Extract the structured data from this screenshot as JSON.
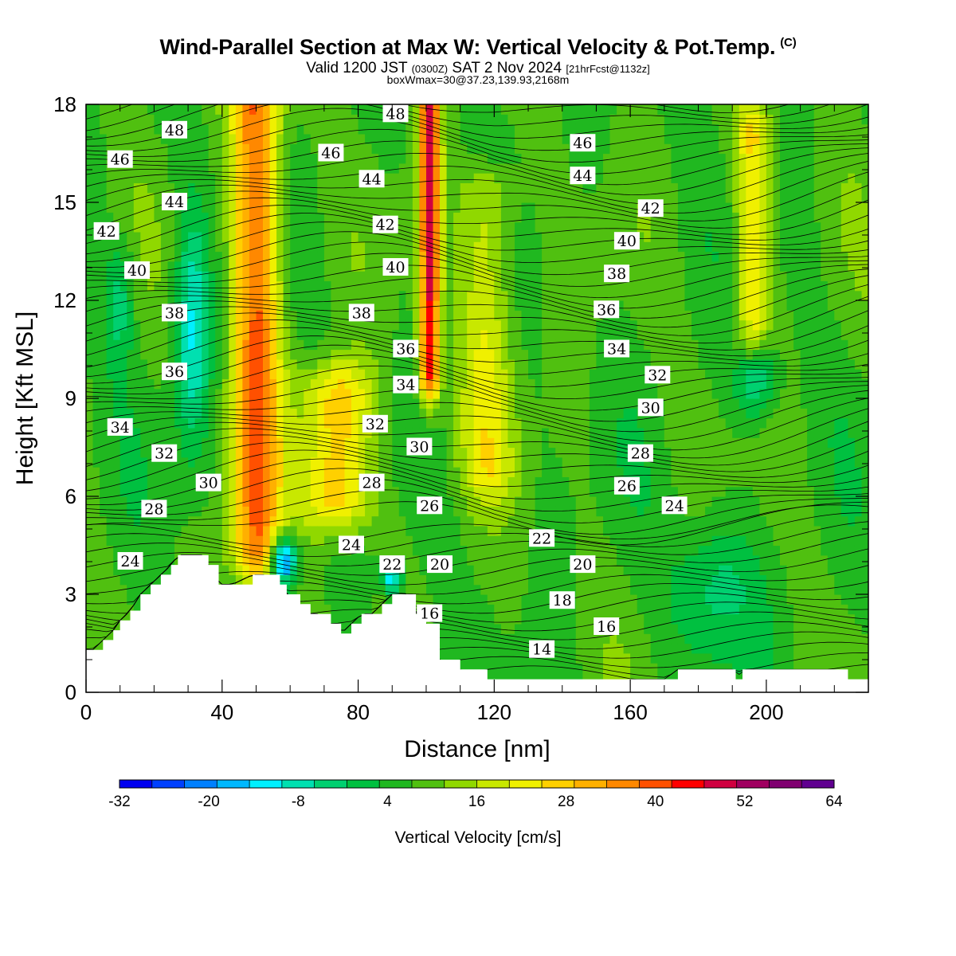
{
  "header": {
    "title": "Wind-Parallel Section at Max W: Vertical Velocity & Pot.Temp.",
    "copyright": "(C)",
    "valid_prefix": "Valid 1200 JST",
    "valid_utc": "(0300Z)",
    "valid_date": "SAT 2 Nov 2024",
    "forecast": "[21hrFcst@1132z]",
    "box_info": "boxWmax=30@37.23,139.93,2168m"
  },
  "chart_data": {
    "type": "heatmap",
    "xlabel": "Distance [nm]",
    "ylabel": "Height [Kft MSL]",
    "xlim": [
      0,
      230
    ],
    "ylim": [
      0,
      18
    ],
    "x_ticks": [
      0,
      40,
      80,
      120,
      160,
      200
    ],
    "y_ticks": [
      0,
      3,
      6,
      9,
      12,
      15,
      18
    ],
    "colorbar": {
      "title": "Vertical Velocity [cm/s]",
      "tick_labels": [
        "-32",
        "-20",
        "-8",
        "4",
        "16",
        "28",
        "40",
        "52",
        "64"
      ],
      "min": -32,
      "max": 64,
      "step": 4,
      "colors": [
        "#0000f0",
        "#0040ff",
        "#0080ff",
        "#00b8ff",
        "#00f0ff",
        "#00e0b0",
        "#00d070",
        "#00c040",
        "#20b820",
        "#50c010",
        "#90d800",
        "#c8e800",
        "#f0f000",
        "#ffd000",
        "#ffb000",
        "#ff8800",
        "#ff5000",
        "#ff0000",
        "#d00040",
        "#a00060",
        "#800070",
        "#600090"
      ]
    },
    "terrain_kft": {
      "x": [
        0,
        2,
        5,
        8,
        10,
        13,
        16,
        19,
        22,
        25,
        27,
        30,
        34,
        36,
        39,
        43,
        49,
        53,
        57,
        59,
        63,
        66,
        69,
        72,
        75,
        78,
        81,
        84,
        87,
        90,
        94,
        97,
        100,
        104,
        110,
        118,
        124,
        130,
        140,
        150,
        160,
        165,
        170,
        174,
        180,
        190,
        191,
        193,
        200,
        210,
        218,
        224,
        230
      ],
      "y": [
        1.3,
        1.3,
        1.6,
        1.9,
        2.2,
        2.5,
        3.0,
        3.3,
        3.6,
        3.9,
        4.2,
        4.2,
        4.2,
        3.9,
        3.3,
        3.3,
        3.6,
        3.6,
        3.3,
        3.0,
        2.7,
        2.4,
        2.4,
        2.1,
        1.8,
        2.1,
        2.4,
        2.4,
        2.7,
        3.0,
        3.0,
        2.4,
        2.1,
        1.0,
        0.7,
        0.4,
        0.4,
        0.4,
        0.4,
        0.4,
        0.4,
        0.4,
        0.4,
        0.7,
        0.7,
        0.7,
        0.4,
        0.7,
        0.7,
        0.7,
        0.7,
        0.4,
        0.4
      ]
    },
    "updraft_bands": [
      {
        "x_center": 50,
        "x_width": 14,
        "y_bottom": 4.5,
        "y_top": 18,
        "w_max": 32
      },
      {
        "x_center": 101,
        "x_width": 6,
        "y_bottom": 10,
        "y_top": 18,
        "w_max": 40
      },
      {
        "x_center": 74,
        "x_width": 20,
        "y_bottom": 6,
        "y_top": 9,
        "w_max": 24
      },
      {
        "x_center": 118,
        "x_width": 16,
        "y_bottom": 7,
        "y_top": 15,
        "w_max": 16
      },
      {
        "x_center": 196,
        "x_width": 10,
        "y_bottom": 11,
        "y_top": 17,
        "w_max": 20
      }
    ],
    "downdraft_cells": [
      {
        "x_center": 31,
        "x_width": 10,
        "y_bottom": 7.5,
        "y_top": 14.5,
        "w_min": -12
      },
      {
        "x_center": 10,
        "x_width": 8,
        "y_bottom": 10,
        "y_top": 14,
        "w_min": -6
      },
      {
        "x_center": 58,
        "x_width": 8,
        "y_bottom": 3.3,
        "y_top": 4.8,
        "w_min": -28
      },
      {
        "x_center": 90,
        "x_width": 6,
        "y_bottom": 3.0,
        "y_top": 4.0,
        "w_min": -16
      },
      {
        "x_center": 197,
        "x_width": 12,
        "y_bottom": 8.5,
        "y_top": 11,
        "w_min": -12
      },
      {
        "x_center": 185,
        "x_width": 24,
        "y_bottom": 1,
        "y_top": 5.5,
        "w_min": -6
      }
    ],
    "theta_contour_labels": [
      {
        "value": "48",
        "x": 26,
        "y": 17.2
      },
      {
        "value": "48",
        "x": 91,
        "y": 17.7
      },
      {
        "value": "46",
        "x": 10,
        "y": 16.3
      },
      {
        "value": "46",
        "x": 72,
        "y": 16.5
      },
      {
        "value": "46",
        "x": 146,
        "y": 16.8
      },
      {
        "value": "44",
        "x": 26,
        "y": 15.0
      },
      {
        "value": "44",
        "x": 84,
        "y": 15.7
      },
      {
        "value": "44",
        "x": 146,
        "y": 15.8
      },
      {
        "value": "42",
        "x": 6,
        "y": 14.1
      },
      {
        "value": "42",
        "x": 88,
        "y": 14.3
      },
      {
        "value": "42",
        "x": 166,
        "y": 14.8
      },
      {
        "value": "40",
        "x": 15,
        "y": 12.9
      },
      {
        "value": "40",
        "x": 91,
        "y": 13.0
      },
      {
        "value": "40",
        "x": 159,
        "y": 13.8
      },
      {
        "value": "38",
        "x": 26,
        "y": 11.6
      },
      {
        "value": "38",
        "x": 81,
        "y": 11.6
      },
      {
        "value": "38",
        "x": 156,
        "y": 12.8
      },
      {
        "value": "36",
        "x": 26,
        "y": 9.8
      },
      {
        "value": "36",
        "x": 94,
        "y": 10.5
      },
      {
        "value": "36",
        "x": 153,
        "y": 11.7
      },
      {
        "value": "34",
        "x": 10,
        "y": 8.1
      },
      {
        "value": "34",
        "x": 94,
        "y": 9.4
      },
      {
        "value": "34",
        "x": 156,
        "y": 10.5
      },
      {
        "value": "32",
        "x": 23,
        "y": 7.3
      },
      {
        "value": "32",
        "x": 85,
        "y": 8.2
      },
      {
        "value": "32",
        "x": 168,
        "y": 9.7
      },
      {
        "value": "30",
        "x": 36,
        "y": 6.4
      },
      {
        "value": "30",
        "x": 98,
        "y": 7.5
      },
      {
        "value": "30",
        "x": 166,
        "y": 8.7
      },
      {
        "value": "28",
        "x": 20,
        "y": 5.6
      },
      {
        "value": "28",
        "x": 84,
        "y": 6.4
      },
      {
        "value": "28",
        "x": 163,
        "y": 7.3
      },
      {
        "value": "26",
        "x": 101,
        "y": 5.7
      },
      {
        "value": "26",
        "x": 159,
        "y": 6.3
      },
      {
        "value": "24",
        "x": 13,
        "y": 4.0
      },
      {
        "value": "24",
        "x": 78,
        "y": 4.5
      },
      {
        "value": "24",
        "x": 173,
        "y": 5.7
      },
      {
        "value": "22",
        "x": 90,
        "y": 3.9
      },
      {
        "value": "22",
        "x": 134,
        "y": 4.7
      },
      {
        "value": "20",
        "x": 104,
        "y": 3.9
      },
      {
        "value": "20",
        "x": 146,
        "y": 3.9
      },
      {
        "value": "18",
        "x": 140,
        "y": 2.8
      },
      {
        "value": "16",
        "x": 101,
        "y": 2.4
      },
      {
        "value": "16",
        "x": 153,
        "y": 2.0
      },
      {
        "value": "14",
        "x": 134,
        "y": 1.3
      }
    ]
  }
}
